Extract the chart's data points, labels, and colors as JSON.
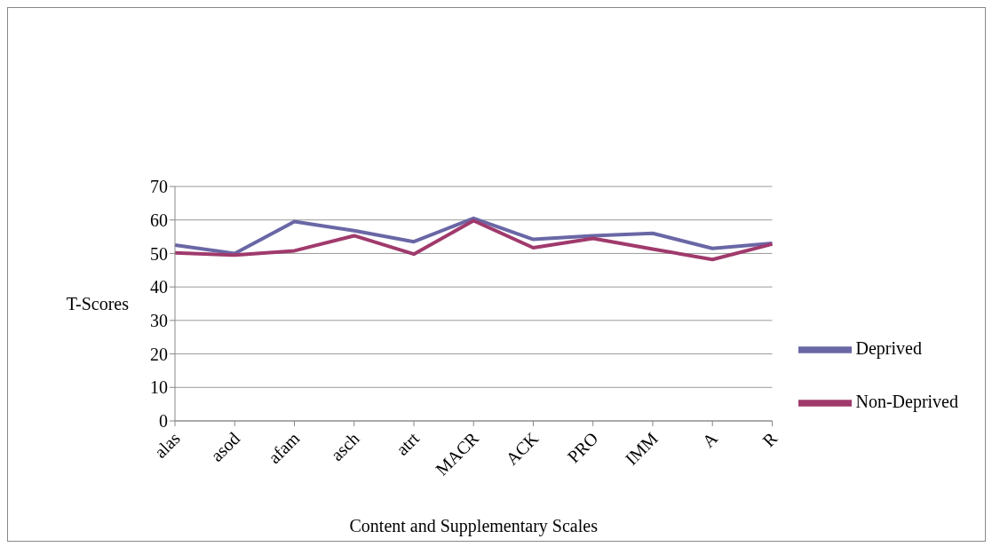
{
  "chart_data": {
    "type": "line",
    "xlabel": "Content and Supplementary Scales",
    "ylabel": "T-Scores",
    "categories": [
      "alas",
      "asod",
      "afam",
      "asch",
      "atrt",
      "MACR",
      "ACK",
      "PRO",
      "IMM",
      "A",
      "R"
    ],
    "series": [
      {
        "name": "Deprived",
        "color": "#6a67a6",
        "values": [
          52.5,
          50,
          59.5,
          56.8,
          53.5,
          60.5,
          54.2,
          55.3,
          56,
          51.5,
          53
        ]
      },
      {
        "name": "Non-Deprived",
        "color": "#a03a6c",
        "values": [
          50.2,
          49.5,
          50.8,
          55.3,
          49.8,
          59.8,
          51.7,
          54.5,
          51.3,
          48.2,
          52.8
        ]
      }
    ],
    "ylim": [
      0,
      70
    ],
    "yticks": [
      0,
      10,
      20,
      30,
      40,
      50,
      60,
      70
    ],
    "grid": "y",
    "legend": "right",
    "marker": "none",
    "line_style": "solid"
  }
}
